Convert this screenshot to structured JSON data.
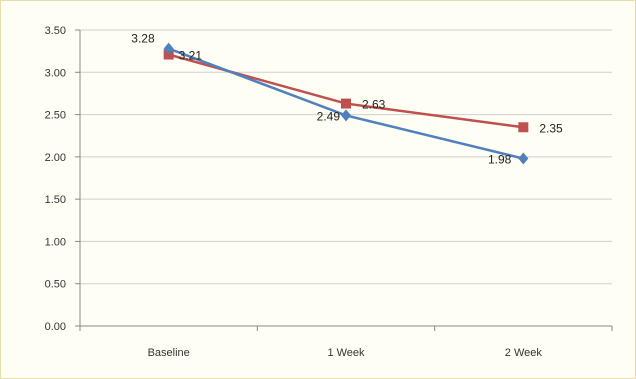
{
  "chart_data": {
    "type": "line",
    "categories": [
      "Baseline",
      "1 Week",
      "2 Week"
    ],
    "y_ticks": [
      "0.00",
      "0.50",
      "1.00",
      "1.50",
      "2.00",
      "2.50",
      "3.00",
      "3.50"
    ],
    "ylim": [
      0,
      3.5
    ],
    "grid": true,
    "legend": "none",
    "series": [
      {
        "color": "#4f81bd",
        "marker": "diamond",
        "values": [
          3.28,
          2.49,
          1.98
        ],
        "labels": [
          "3.28",
          "2.49",
          "1.98"
        ]
      },
      {
        "color": "#c0504d",
        "marker": "square",
        "values": [
          3.21,
          2.63,
          2.35
        ],
        "labels": [
          "3.21",
          "2.63",
          "2.35"
        ]
      }
    ]
  }
}
